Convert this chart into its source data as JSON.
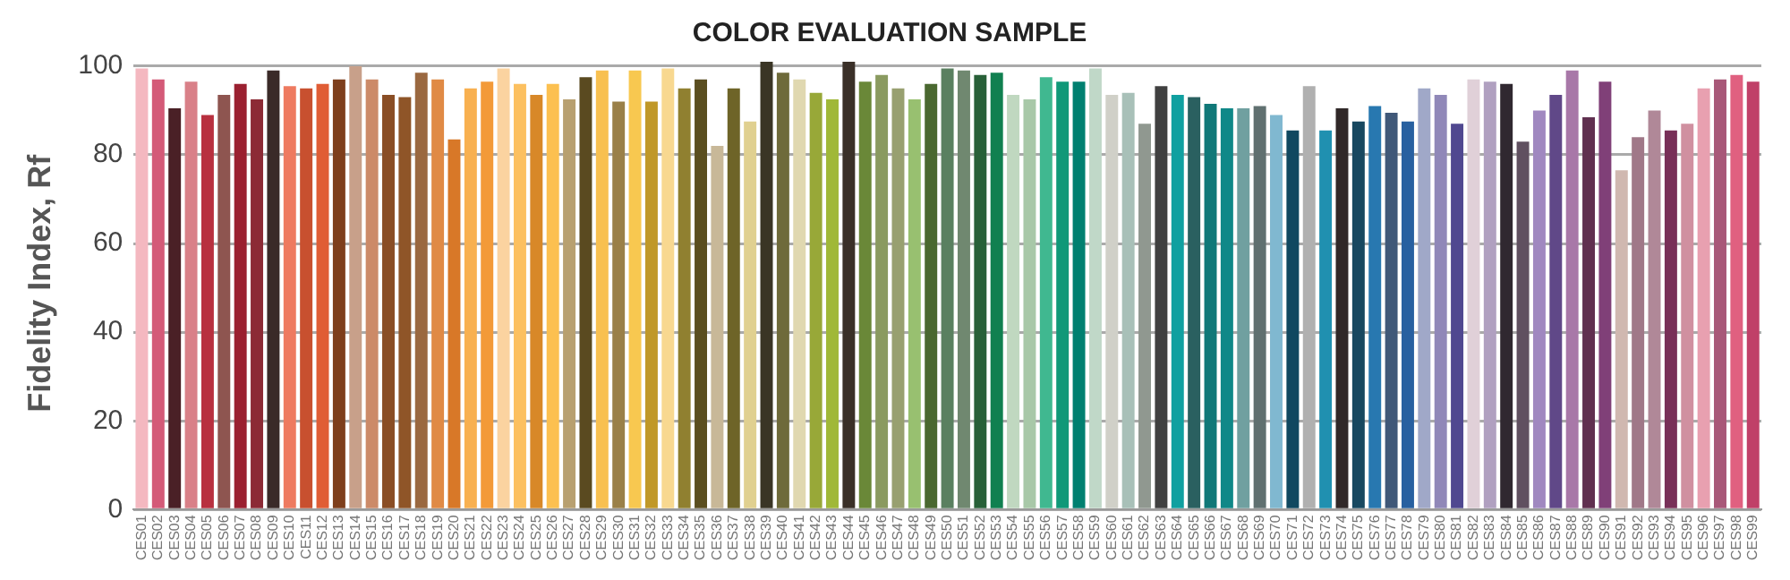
{
  "chart_data": {
    "type": "bar",
    "title": "COLOR EVALUATION SAMPLE",
    "ylabel": "Fidelity Index, Rf",
    "categories": [
      "CES01",
      "CES02",
      "CES03",
      "CES04",
      "CES05",
      "CES06",
      "CES07",
      "CES08",
      "CES09",
      "CES10",
      "CES11",
      "CES12",
      "CES13",
      "CES14",
      "CES15",
      "CES16",
      "CES17",
      "CES18",
      "CES19",
      "CES20",
      "CES21",
      "CES22",
      "CES23",
      "CES24",
      "CES25",
      "CES26",
      "CES27",
      "CES28",
      "CES29",
      "CES30",
      "CES31",
      "CES32",
      "CES33",
      "CES34",
      "CES35",
      "CES36",
      "CES37",
      "CES38",
      "CES39",
      "CES40",
      "CES41",
      "CES42",
      "CES43",
      "CES44",
      "CES45",
      "CES46",
      "CES47",
      "CES48",
      "CES49",
      "CES50",
      "CES51",
      "CES52",
      "CES53",
      "CES54",
      "CES55",
      "CES56",
      "CES57",
      "CES58",
      "CES59",
      "CES60",
      "CES61",
      "CES62",
      "CES63",
      "CES64",
      "CES65",
      "CES66",
      "CES67",
      "CES68",
      "CES69",
      "CES70",
      "CES71",
      "CES72",
      "CES73",
      "CES74",
      "CES75",
      "CES76",
      "CES77",
      "CES78",
      "CES79",
      "CES80",
      "CES81",
      "CES82",
      "CES83",
      "CES84",
      "CES85",
      "CES86",
      "CES87",
      "CES88",
      "CES89",
      "CES90",
      "CES91",
      "CES92",
      "CES93",
      "CES94",
      "CES95",
      "CES96",
      "CES97",
      "CES98",
      "CES99"
    ],
    "values": [
      99.5,
      97,
      90.5,
      96.5,
      89,
      93.5,
      96,
      92.5,
      99,
      95.5,
      95,
      96,
      97,
      100,
      97,
      93.5,
      93,
      98.5,
      97,
      83.5,
      95,
      96.5,
      99.5,
      96,
      93.5,
      96,
      92.5,
      97.5,
      99,
      92,
      99,
      92,
      99.5,
      95,
      97,
      82,
      95,
      87.5,
      101,
      98.5,
      97,
      94,
      92.5,
      101,
      96.5,
      98,
      95,
      92.5,
      96,
      99.5,
      99,
      98,
      98.5,
      93.5,
      92.5,
      97.5,
      96.5,
      96.5,
      99.5,
      93.5,
      94,
      87,
      95.5,
      93.5,
      93,
      91.5,
      90.5,
      90.5,
      91,
      89,
      85.5,
      95.5,
      85.5,
      90.5,
      87.5,
      91,
      89.5,
      87.5,
      95,
      93.5,
      87,
      97,
      96.5,
      96,
      83,
      90,
      93.5,
      99,
      88.5,
      96.5,
      76.5,
      84,
      90,
      85.5,
      87,
      95,
      97,
      98,
      96.5
    ],
    "colors": [
      "#f4b8c0",
      "#d45a78",
      "#4a2026",
      "#d98088",
      "#b8303f",
      "#8e5550",
      "#9a2030",
      "#8c2a35",
      "#3a2a28",
      "#ee7a60",
      "#c8502f",
      "#e05d35",
      "#7e3f1c",
      "#c8a08a",
      "#cc8a68",
      "#8a4e25",
      "#8f5528",
      "#9a6840",
      "#e08a45",
      "#d87828",
      "#f8b050",
      "#f39a38",
      "#fbd3a0",
      "#fcc060",
      "#d88828",
      "#fcc050",
      "#b8a070",
      "#5a4a20",
      "#f8c050",
      "#9a8048",
      "#f8c850",
      "#c09828",
      "#f8d890",
      "#908030",
      "#5a4e20",
      "#c8b898",
      "#6e6428",
      "#e0d090",
      "#3a3525",
      "#6e6a3a",
      "#e0d8b0",
      "#98a838",
      "#a0b838",
      "#3a3028",
      "#6a8838",
      "#8a9a60",
      "#98a070",
      "#98c070",
      "#4a6830",
      "#5a8060",
      "#708870",
      "#286038",
      "#108050",
      "#c0d8c0",
      "#a8c8a8",
      "#40b890",
      "#109878",
      "#008070",
      "#c0d8c8",
      "#d0d0c8",
      "#a8c0b8",
      "#909890",
      "#404040",
      "#10a0a0",
      "#2a6060",
      "#107878",
      "#108888",
      "#70a0a0",
      "#607070",
      "#80b8d0",
      "#104860",
      "#b0b0b0",
      "#2090b0",
      "#302828",
      "#184860",
      "#2878b0",
      "#405878",
      "#2860a0",
      "#a0a8c8",
      "#9088b8",
      "#504890",
      "#e0d0d8",
      "#b0a0c0",
      "#302830",
      "#605060",
      "#a088c0",
      "#604888",
      "#a878a8",
      "#603050",
      "#804078",
      "#d0b8b0",
      "#a07888",
      "#b08898",
      "#783058",
      "#d090a0",
      "#e8a0b0",
      "#a85878",
      "#e06080",
      "#c04068"
    ],
    "ylim": [
      0,
      102
    ],
    "yticks": [
      0,
      20,
      40,
      60,
      80,
      100
    ],
    "grid": "y"
  }
}
